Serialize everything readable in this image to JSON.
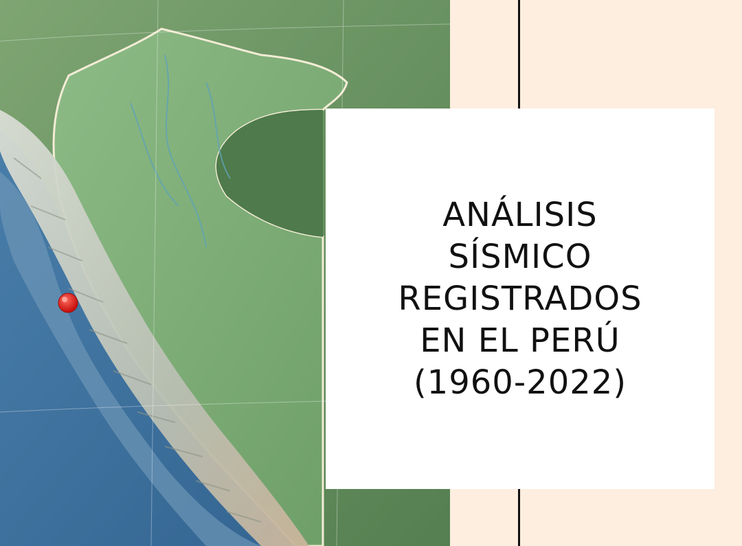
{
  "title": {
    "lines": [
      "ANÁLISIS",
      "SÍSMICO",
      "REGISTRADOS",
      "EN EL PERÚ",
      "(1960-2022)"
    ]
  },
  "colors": {
    "background": "#fdeee0",
    "card": "#ffffff",
    "text": "#111111",
    "ocean": "#3f6f9a",
    "lowland": "#5f8f5a",
    "mountains": "#cfd3c9",
    "marker": "#e0221f"
  },
  "map": {
    "marker_icon": "location-pin-icon"
  }
}
